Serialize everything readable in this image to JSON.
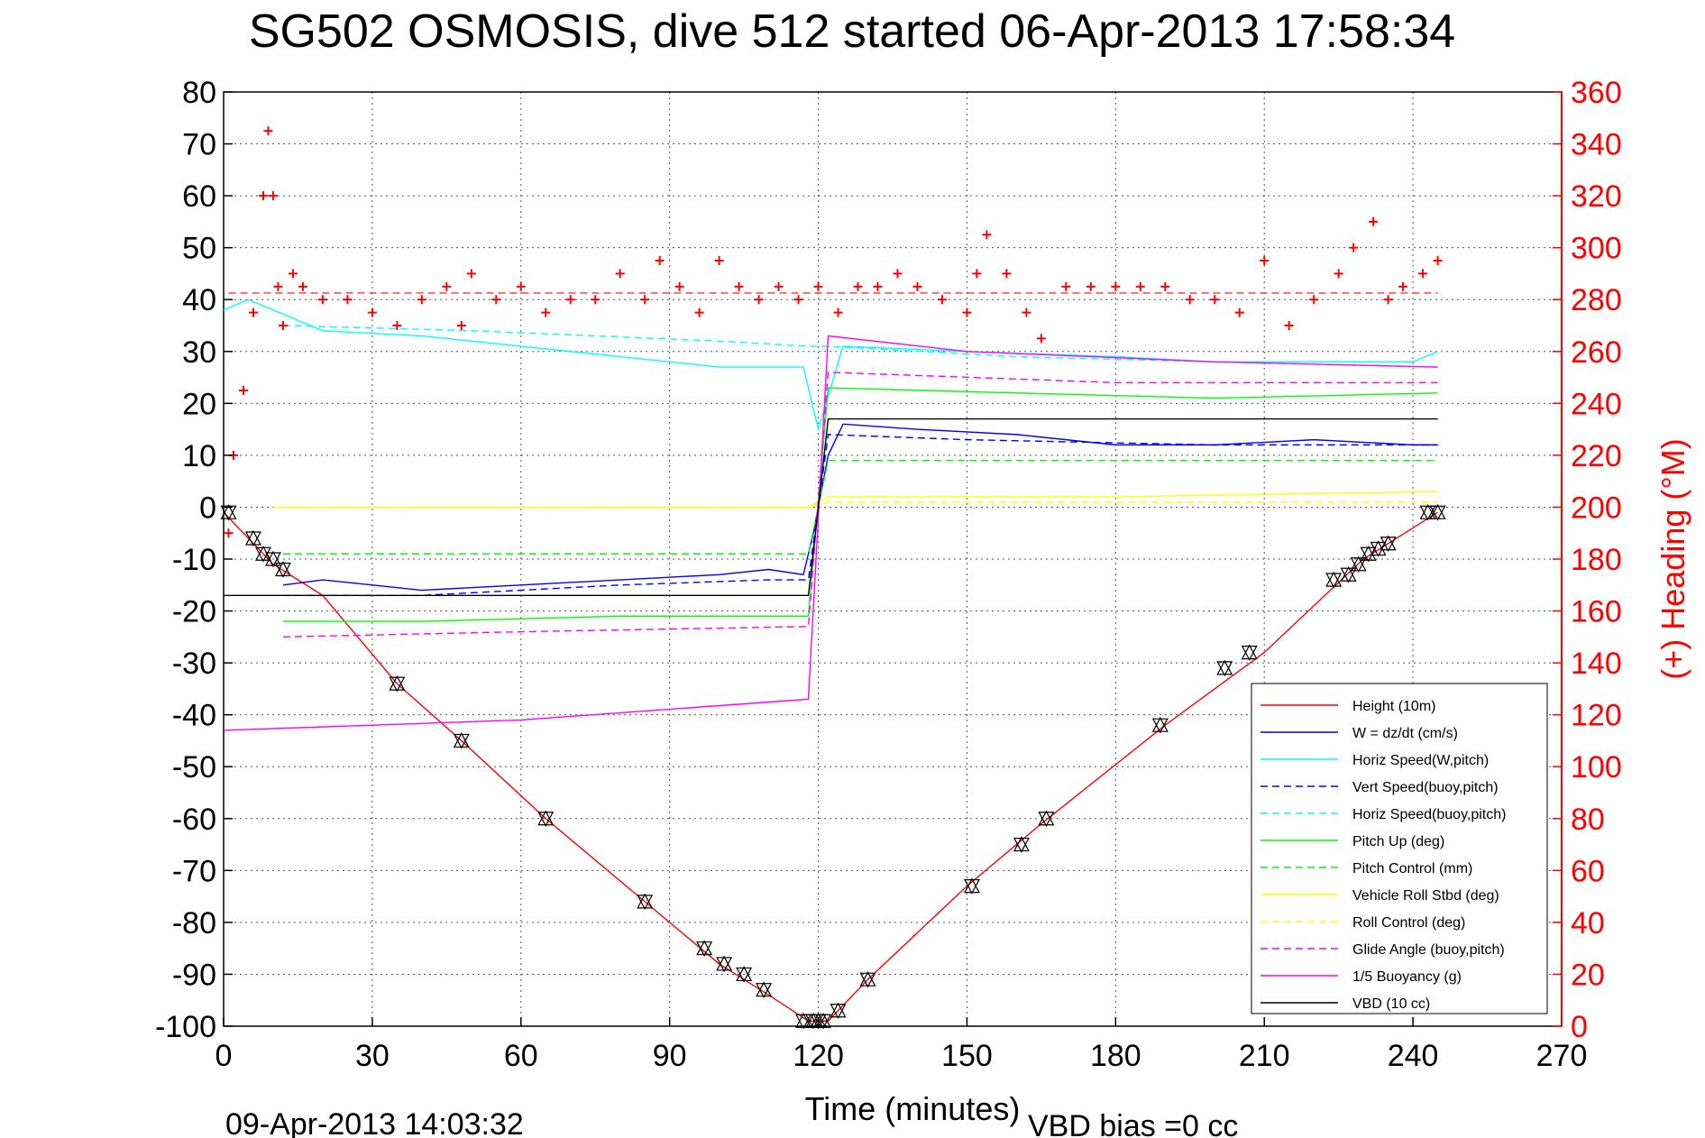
{
  "chart_data": {
    "type": "line",
    "title": "SG502 OSMOSIS, dive 512 started 06-Apr-2013 17:58:34",
    "xlabel": "Time (minutes)",
    "ylabel_right": "(+) Heading (°M)",
    "footer_left": "09-Apr-2013 14:03:32",
    "footer_right": "VBD bias =0 cc",
    "xlim": [
      0,
      270
    ],
    "ylim_left": [
      -100,
      80
    ],
    "ylim_right": [
      0,
      360
    ],
    "x_ticks": [
      "0",
      "30",
      "60",
      "90",
      "120",
      "150",
      "180",
      "210",
      "240",
      "270"
    ],
    "y_left_ticks": [
      "80",
      "70",
      "60",
      "50",
      "40",
      "30",
      "20",
      "10",
      "0",
      "-10",
      "-20",
      "-30",
      "-40",
      "-50",
      "-60",
      "-70",
      "-80",
      "-90",
      "-100"
    ],
    "y_right_ticks": [
      "360",
      "340",
      "320",
      "300",
      "280",
      "260",
      "240",
      "220",
      "200",
      "180",
      "160",
      "140",
      "120",
      "100",
      "80",
      "60",
      "40",
      "20",
      "0"
    ],
    "grid": true,
    "legend_position": "bottom-right",
    "colors": {
      "axis_right": "#ff0000",
      "heading_marker": "#ff0000"
    },
    "series": [
      {
        "name": "Height (10m)",
        "color": "#ff0000",
        "style": "solid",
        "x": [
          0,
          10,
          20,
          35,
          48,
          65,
          85,
          100,
          110,
          118,
          122,
          130,
          150,
          165,
          190,
          210,
          230,
          245
        ],
        "y": [
          -1,
          -11,
          -17,
          -34,
          -45,
          -60,
          -76,
          -88,
          -94,
          -99,
          -99,
          -91,
          -73,
          -61,
          -42,
          -28,
          -10,
          -1
        ]
      },
      {
        "name": "W = dz/dt (cm/s)",
        "color": "#0000ff",
        "style": "solid",
        "x": [
          12,
          20,
          40,
          60,
          80,
          100,
          110,
          117,
          119,
          122,
          125,
          140,
          160,
          180,
          200,
          220,
          240,
          245
        ],
        "y": [
          -15,
          -14,
          -16,
          -15,
          -14,
          -13,
          -12,
          -13,
          -5,
          10,
          16,
          15,
          14,
          12,
          12,
          13,
          12,
          12
        ]
      },
      {
        "name": "Horiz Speed(W,pitch)",
        "color": "#00ffff",
        "style": "solid",
        "x": [
          0,
          5,
          10,
          20,
          40,
          60,
          80,
          100,
          117,
          120,
          125,
          150,
          180,
          200,
          220,
          240,
          245
        ],
        "y": [
          38,
          40,
          38,
          34,
          33,
          31,
          29,
          27,
          27,
          15,
          31,
          30,
          29,
          28,
          28,
          28,
          30
        ]
      },
      {
        "name": "Vert Speed(buoy,pitch)",
        "color": "#0000ff",
        "style": "dashed",
        "x": [
          12,
          40,
          80,
          110,
          118,
          122,
          150,
          200,
          245
        ],
        "y": [
          -17,
          -17,
          -15,
          -14,
          -14,
          14,
          13,
          12,
          12
        ]
      },
      {
        "name": "Horiz Speed(buoy,pitch)",
        "color": "#00ffff",
        "style": "dashed",
        "x": [
          12,
          50,
          100,
          118,
          122,
          160,
          200,
          245
        ],
        "y": [
          35,
          34,
          32,
          31,
          31,
          29,
          28,
          27
        ]
      },
      {
        "name": "Pitch Up (deg)",
        "color": "#00ff00",
        "style": "solid",
        "x": [
          12,
          40,
          80,
          118,
          122,
          160,
          200,
          245
        ],
        "y": [
          -22,
          -22,
          -21,
          -21,
          23,
          22,
          21,
          22
        ]
      },
      {
        "name": "Pitch Control (mm)",
        "color": "#00ff00",
        "style": "dashed",
        "x": [
          12,
          118,
          122,
          245
        ],
        "y": [
          -9,
          -9,
          9,
          9
        ]
      },
      {
        "name": "Vehicle Roll Stbd (deg)",
        "color": "#ffff00",
        "style": "solid",
        "x": [
          10,
          60,
          118,
          122,
          180,
          245
        ],
        "y": [
          0,
          0,
          0,
          2,
          2,
          3
        ]
      },
      {
        "name": "Roll Control (deg)",
        "color": "#ffff00",
        "style": "dashed",
        "x": [
          10,
          118,
          122,
          245
        ],
        "y": [
          0,
          0,
          1,
          1
        ]
      },
      {
        "name": "Glide Angle (buoy,pitch)",
        "color": "#ff00ff",
        "style": "dashed",
        "x": [
          12,
          60,
          118,
          122,
          180,
          245
        ],
        "y": [
          -25,
          -24,
          -23,
          26,
          24,
          24
        ]
      },
      {
        "name": "1/5 Buoyancy (g)",
        "color": "#ff00ff",
        "style": "solid",
        "x": [
          0,
          60,
          118,
          122,
          150,
          200,
          245
        ],
        "y": [
          -43,
          -41,
          -37,
          33,
          30,
          28,
          27
        ]
      },
      {
        "name": "VBD (10 cc)",
        "color": "#000000",
        "style": "solid",
        "x": [
          0,
          12,
          118,
          122,
          245
        ],
        "y": [
          -17,
          -17,
          -17,
          17,
          17
        ]
      }
    ],
    "heading": {
      "name": "(+) Heading",
      "axis": "right",
      "color": "#ff0000",
      "marker": "+",
      "x": [
        1,
        2,
        4,
        6,
        8,
        9,
        10,
        11,
        12,
        14,
        16,
        20,
        25,
        30,
        35,
        40,
        45,
        48,
        50,
        55,
        60,
        65,
        70,
        75,
        80,
        85,
        88,
        92,
        96,
        100,
        104,
        108,
        112,
        116,
        120,
        124,
        128,
        132,
        136,
        140,
        145,
        150,
        152,
        154,
        158,
        162,
        165,
        170,
        175,
        180,
        185,
        190,
        195,
        200,
        205,
        210,
        215,
        220,
        225,
        228,
        232,
        235,
        238,
        242,
        245
      ],
      "y": [
        190,
        220,
        245,
        275,
        320,
        345,
        320,
        285,
        270,
        290,
        285,
        280,
        280,
        275,
        270,
        280,
        285,
        270,
        290,
        280,
        285,
        275,
        280,
        280,
        290,
        280,
        295,
        285,
        275,
        295,
        285,
        280,
        285,
        280,
        285,
        275,
        285,
        285,
        290,
        285,
        280,
        275,
        290,
        305,
        290,
        275,
        265,
        285,
        285,
        285,
        285,
        285,
        280,
        280,
        275,
        295,
        270,
        280,
        290,
        300,
        310,
        280,
        285,
        290,
        295
      ]
    },
    "markers": {
      "name": "Height samples",
      "color": "#000000",
      "shape": "triangle",
      "x": [
        1,
        6,
        8,
        10,
        12,
        35,
        48,
        65,
        85,
        97,
        101,
        105,
        109,
        117,
        119,
        120,
        121,
        124,
        130,
        151,
        161,
        166,
        189,
        202,
        207,
        224,
        227,
        229,
        231,
        233,
        235,
        243,
        245
      ],
      "y": [
        -1,
        -6,
        -9,
        -10,
        -12,
        -34,
        -45,
        -60,
        -76,
        -85,
        -88,
        -90,
        -93,
        -99,
        -99,
        -99,
        -99,
        -97,
        -91,
        -73,
        -65,
        -60,
        -42,
        -31,
        -28,
        -14,
        -13,
        -11,
        -9,
        -8,
        -7,
        -1,
        -1
      ]
    }
  }
}
